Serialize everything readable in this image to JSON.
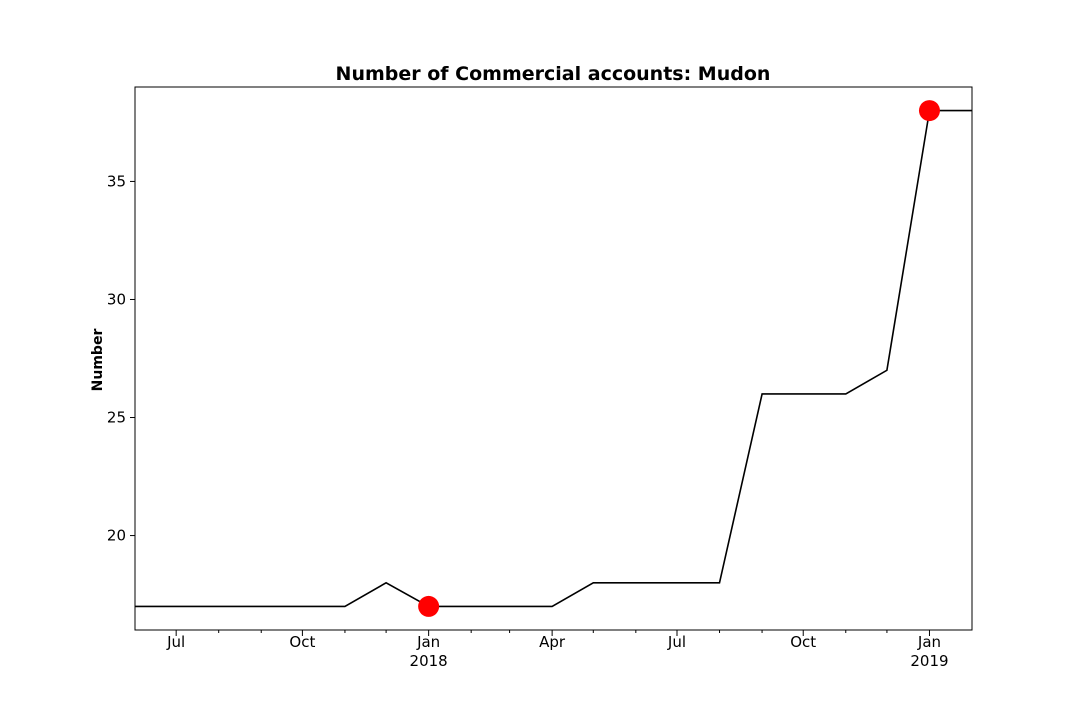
{
  "chart_data": {
    "type": "line",
    "title": "Number of Commercial accounts: Mudon",
    "xlabel": "",
    "ylabel": "Number",
    "x": [
      "2017-06-01",
      "2017-07-01",
      "2017-08-01",
      "2017-09-01",
      "2017-10-01",
      "2017-11-01",
      "2017-12-01",
      "2018-01-01",
      "2018-02-01",
      "2018-03-01",
      "2018-04-01",
      "2018-05-01",
      "2018-06-01",
      "2018-07-01",
      "2018-08-01",
      "2018-09-01",
      "2018-10-01",
      "2018-11-01",
      "2018-12-01",
      "2019-01-01",
      "2019-02-01"
    ],
    "series": [
      {
        "values": [
          17,
          17,
          17,
          17,
          17,
          17,
          18,
          17,
          17,
          17,
          17,
          18,
          18,
          18,
          18,
          26,
          26,
          26,
          27,
          38,
          38
        ],
        "color": "#000000"
      }
    ],
    "highlight_points": [
      {
        "x": "2018-01-01",
        "y": 17
      },
      {
        "x": "2019-01-01",
        "y": 38
      }
    ],
    "highlight_color": "#ff0000",
    "xlim": [
      "2017-06-01",
      "2019-02-01"
    ],
    "ylim": [
      16,
      39
    ],
    "y_ticks": [
      20,
      25,
      30,
      35
    ],
    "x_ticks": [
      {
        "date": "2017-07-01",
        "label": "Jul",
        "year": ""
      },
      {
        "date": "2017-10-01",
        "label": "Oct",
        "year": ""
      },
      {
        "date": "2018-01-01",
        "label": "Jan",
        "year": "2018"
      },
      {
        "date": "2018-04-01",
        "label": "Apr",
        "year": ""
      },
      {
        "date": "2018-07-01",
        "label": "Jul",
        "year": ""
      },
      {
        "date": "2018-10-01",
        "label": "Oct",
        "year": ""
      },
      {
        "date": "2019-01-01",
        "label": "Jan",
        "year": "2019"
      }
    ],
    "minor_x_ticks": [
      "2017-08-01",
      "2017-09-01",
      "2017-11-01",
      "2017-12-01",
      "2018-02-01",
      "2018-03-01",
      "2018-05-01",
      "2018-06-01",
      "2018-08-01",
      "2018-09-01",
      "2018-11-01",
      "2018-12-01"
    ],
    "grid": false,
    "legend": "none"
  }
}
